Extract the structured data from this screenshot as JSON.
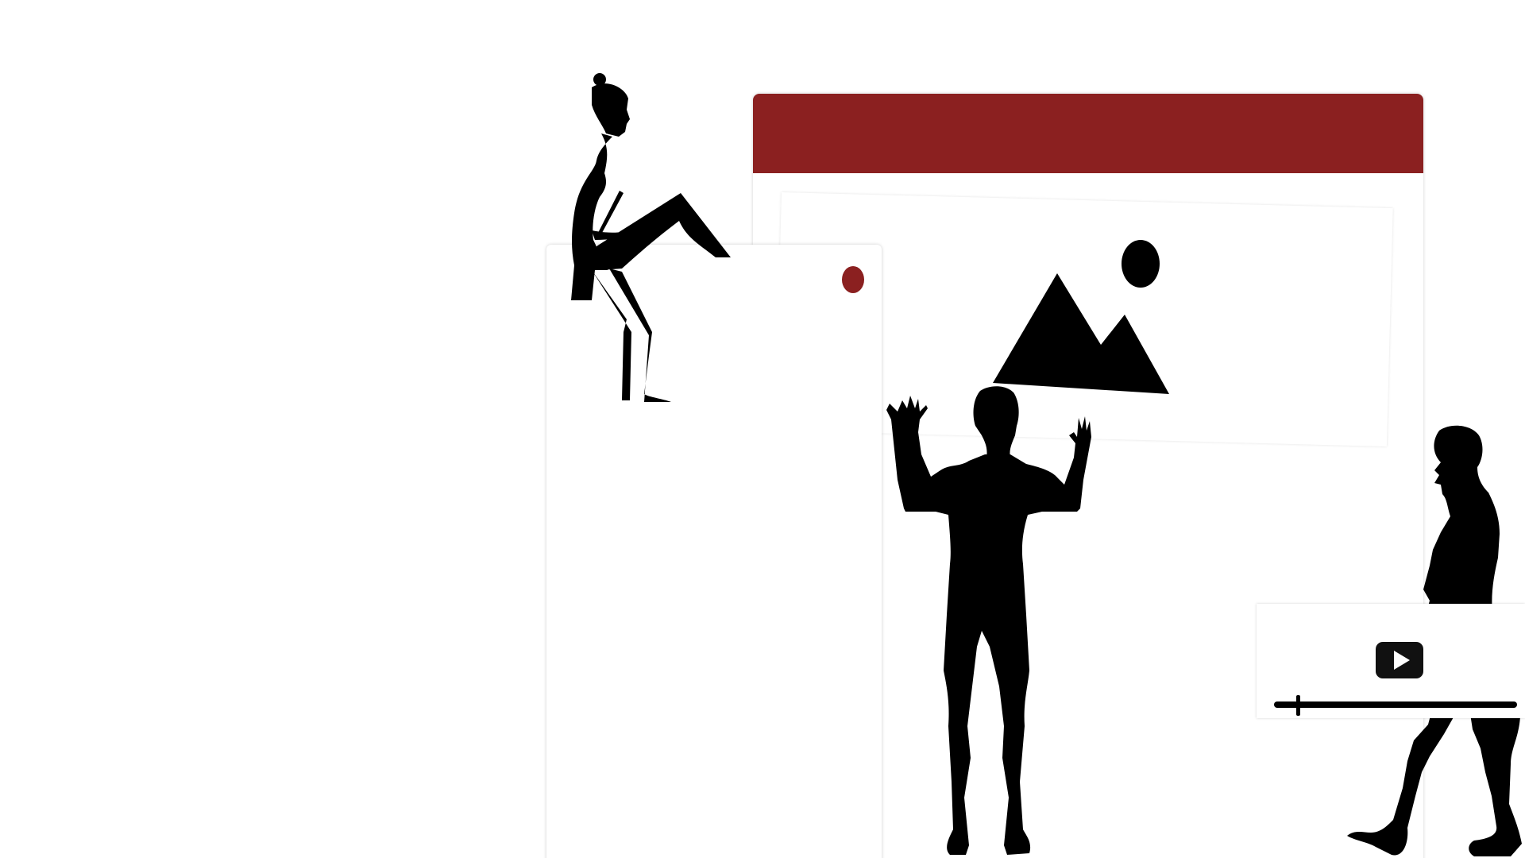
{
  "colors": {
    "accent": "#8b2020",
    "silhouette": "#000000",
    "background": "#ffffff",
    "card": "#ffffff"
  },
  "window": {
    "titlebar_icon": "none"
  },
  "image_placeholder": {
    "icon": "image-icon"
  },
  "phone": {
    "indicator_icon": "red-dot-icon"
  },
  "video_player": {
    "play_icon": "play-icon",
    "progress": 0.09
  },
  "illustration": {
    "figures": [
      "woman-with-laptop-silhouette",
      "man-arms-raised-silhouette",
      "man-walking-silhouette"
    ]
  }
}
